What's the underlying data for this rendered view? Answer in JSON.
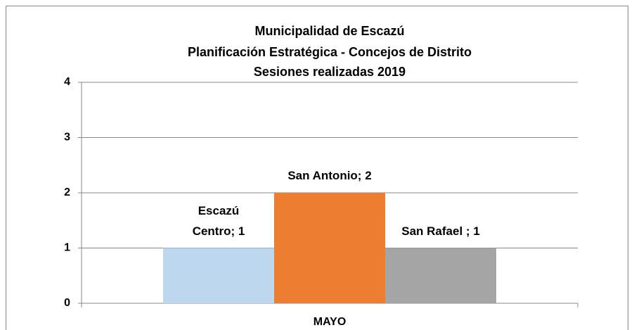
{
  "chart_data": {
    "type": "bar",
    "title": [
      "Municipalidad de Escazú",
      "Planificación Estratégica - Concejos de Distrito",
      "Sesiones realizadas 2019"
    ],
    "categories": [
      "MAYO"
    ],
    "series": [
      {
        "color": "#bdd7ee",
        "values": [
          1
        ],
        "value_labels": [
          "Escazú Centro; 1"
        ]
      },
      {
        "color": "#ed7d31",
        "values": [
          2
        ],
        "value_labels": [
          "San Antonio; 2"
        ]
      },
      {
        "color": "#a5a5a5",
        "values": [
          1
        ],
        "value_labels": [
          "San Rafael ; 1"
        ]
      }
    ],
    "ylim": [
      0,
      4
    ],
    "yticks": [
      0,
      1,
      2,
      3,
      4
    ],
    "grid": true,
    "legend": "none"
  }
}
